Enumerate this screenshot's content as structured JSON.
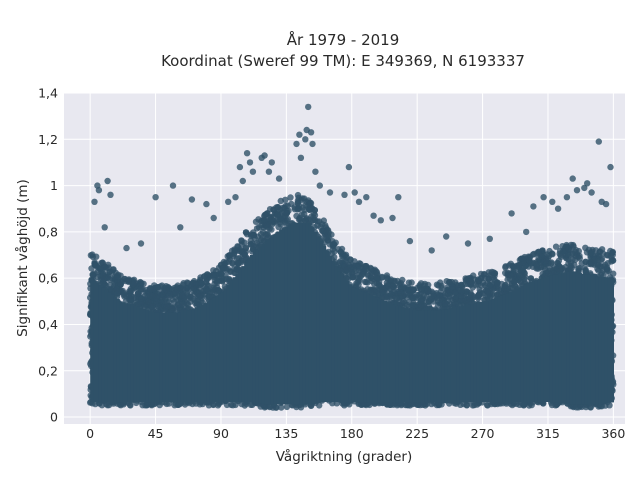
{
  "chart_data": {
    "type": "scatter",
    "title": "År 1979 - 2019",
    "subtitle": "Koordinat (Sweref 99 TM): E 349369, N 6193337",
    "xlabel": "Vågriktning (grader)",
    "ylabel": "Signifikant våghöjd (m)",
    "xlim": [
      -18,
      368
    ],
    "ylim": [
      -0.03,
      1.4
    ],
    "xticks": [
      0,
      45,
      90,
      135,
      180,
      225,
      270,
      315,
      360
    ],
    "xtick_labels": [
      "0",
      "45",
      "90",
      "135",
      "180",
      "225",
      "270",
      "315",
      "360"
    ],
    "yticks": [
      0,
      0.2,
      0.4,
      0.6,
      0.8,
      1.0,
      1.2,
      1.4
    ],
    "ytick_labels": [
      "0",
      "0,2",
      "0,4",
      "0,6",
      "0,8",
      "1",
      "1,2",
      "1,4"
    ],
    "grid": true,
    "marker_color": "#2f5168",
    "background_color": "#e8e8f0",
    "dense_envelope": {
      "x": [
        0,
        10,
        20,
        30,
        45,
        60,
        75,
        90,
        100,
        110,
        120,
        130,
        140,
        150,
        160,
        170,
        180,
        195,
        210,
        225,
        240,
        255,
        270,
        285,
        300,
        315,
        330,
        345,
        360
      ],
      "y_min": [
        0.05,
        0.05,
        0.05,
        0.05,
        0.05,
        0.05,
        0.05,
        0.05,
        0.05,
        0.05,
        0.04,
        0.04,
        0.04,
        0.04,
        0.05,
        0.05,
        0.05,
        0.05,
        0.05,
        0.05,
        0.05,
        0.05,
        0.05,
        0.05,
        0.05,
        0.05,
        0.04,
        0.04,
        0.05
      ],
      "y_max": [
        0.72,
        0.67,
        0.62,
        0.6,
        0.57,
        0.57,
        0.6,
        0.66,
        0.74,
        0.82,
        0.88,
        0.93,
        0.96,
        0.96,
        0.86,
        0.75,
        0.68,
        0.64,
        0.6,
        0.58,
        0.58,
        0.6,
        0.62,
        0.65,
        0.7,
        0.73,
        0.75,
        0.73,
        0.72
      ]
    },
    "outliers": [
      {
        "x": 3,
        "y": 0.93
      },
      {
        "x": 5,
        "y": 1.0
      },
      {
        "x": 6,
        "y": 0.98
      },
      {
        "x": 12,
        "y": 1.02
      },
      {
        "x": 14,
        "y": 0.96
      },
      {
        "x": 10,
        "y": 0.82
      },
      {
        "x": 25,
        "y": 0.73
      },
      {
        "x": 35,
        "y": 0.75
      },
      {
        "x": 45,
        "y": 0.95
      },
      {
        "x": 57,
        "y": 1.0
      },
      {
        "x": 62,
        "y": 0.82
      },
      {
        "x": 70,
        "y": 0.94
      },
      {
        "x": 80,
        "y": 0.92
      },
      {
        "x": 85,
        "y": 0.86
      },
      {
        "x": 95,
        "y": 0.93
      },
      {
        "x": 100,
        "y": 0.95
      },
      {
        "x": 103,
        "y": 1.08
      },
      {
        "x": 105,
        "y": 1.02
      },
      {
        "x": 108,
        "y": 1.14
      },
      {
        "x": 110,
        "y": 1.1
      },
      {
        "x": 112,
        "y": 1.06
      },
      {
        "x": 118,
        "y": 1.12
      },
      {
        "x": 120,
        "y": 1.13
      },
      {
        "x": 123,
        "y": 1.06
      },
      {
        "x": 125,
        "y": 1.1
      },
      {
        "x": 130,
        "y": 1.03
      },
      {
        "x": 142,
        "y": 1.18
      },
      {
        "x": 144,
        "y": 1.22
      },
      {
        "x": 145,
        "y": 1.12
      },
      {
        "x": 148,
        "y": 1.2
      },
      {
        "x": 149,
        "y": 1.24
      },
      {
        "x": 150,
        "y": 1.34
      },
      {
        "x": 152,
        "y": 1.23
      },
      {
        "x": 153,
        "y": 1.18
      },
      {
        "x": 155,
        "y": 1.06
      },
      {
        "x": 158,
        "y": 1.0
      },
      {
        "x": 165,
        "y": 0.97
      },
      {
        "x": 175,
        "y": 0.96
      },
      {
        "x": 178,
        "y": 1.08
      },
      {
        "x": 182,
        "y": 0.97
      },
      {
        "x": 185,
        "y": 0.93
      },
      {
        "x": 190,
        "y": 0.95
      },
      {
        "x": 195,
        "y": 0.87
      },
      {
        "x": 200,
        "y": 0.85
      },
      {
        "x": 208,
        "y": 0.86
      },
      {
        "x": 212,
        "y": 0.95
      },
      {
        "x": 220,
        "y": 0.76
      },
      {
        "x": 235,
        "y": 0.72
      },
      {
        "x": 245,
        "y": 0.78
      },
      {
        "x": 260,
        "y": 0.75
      },
      {
        "x": 275,
        "y": 0.77
      },
      {
        "x": 290,
        "y": 0.88
      },
      {
        "x": 300,
        "y": 0.8
      },
      {
        "x": 305,
        "y": 0.91
      },
      {
        "x": 312,
        "y": 0.95
      },
      {
        "x": 318,
        "y": 0.93
      },
      {
        "x": 322,
        "y": 0.9
      },
      {
        "x": 328,
        "y": 0.95
      },
      {
        "x": 332,
        "y": 1.03
      },
      {
        "x": 335,
        "y": 0.98
      },
      {
        "x": 340,
        "y": 0.99
      },
      {
        "x": 342,
        "y": 1.01
      },
      {
        "x": 345,
        "y": 0.97
      },
      {
        "x": 350,
        "y": 1.19
      },
      {
        "x": 352,
        "y": 0.93
      },
      {
        "x": 355,
        "y": 0.92
      },
      {
        "x": 358,
        "y": 1.08
      }
    ]
  }
}
